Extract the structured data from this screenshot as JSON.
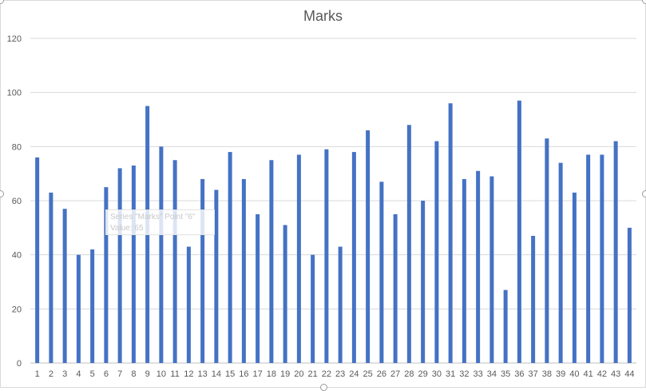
{
  "chart_data": {
    "type": "bar",
    "title": "Marks",
    "xlabel": "",
    "ylabel": "",
    "ylim": [
      0,
      120
    ],
    "yticks": [
      0,
      20,
      40,
      60,
      80,
      100,
      120
    ],
    "grid": true,
    "legend": "none",
    "bar_color": "#4472c4",
    "categories": [
      "1",
      "2",
      "3",
      "4",
      "5",
      "6",
      "7",
      "8",
      "9",
      "10",
      "11",
      "12",
      "13",
      "14",
      "15",
      "16",
      "17",
      "18",
      "19",
      "20",
      "21",
      "22",
      "23",
      "24",
      "25",
      "26",
      "27",
      "28",
      "29",
      "30",
      "31",
      "32",
      "33",
      "34",
      "35",
      "36",
      "37",
      "38",
      "39",
      "40",
      "41",
      "42",
      "43",
      "44"
    ],
    "values": [
      76,
      63,
      57,
      40,
      42,
      65,
      72,
      73,
      95,
      80,
      75,
      43,
      68,
      64,
      78,
      68,
      55,
      75,
      51,
      77,
      40,
      79,
      43,
      78,
      86,
      67,
      55,
      88,
      60,
      82,
      96,
      68,
      71,
      69,
      27,
      97,
      47,
      83,
      74,
      63,
      77,
      77,
      82,
      50
    ]
  },
  "tooltip": {
    "line1": "Series \"Marks\" Point \"6\"",
    "line2": "Value: 65"
  }
}
